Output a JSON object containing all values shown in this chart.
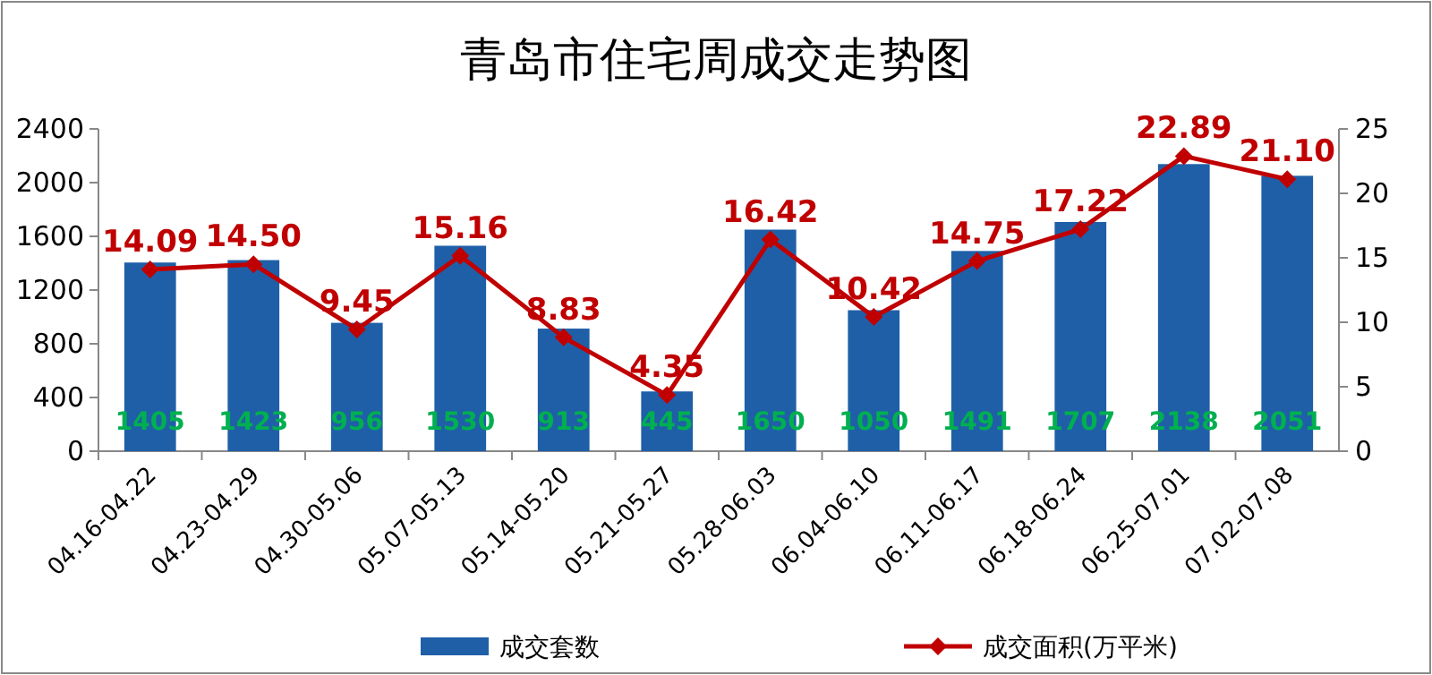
{
  "chart_data": {
    "type": "bar",
    "title": "青岛市住宅周成交走势图",
    "categories": [
      "04.16-04.22",
      "04.23-04.29",
      "04.30-05.06",
      "05.07-05.13",
      "05.14-05.20",
      "05.21-05.27",
      "05.28-06.03",
      "06.04-06.10",
      "06.11-06.17",
      "06.18-06.24",
      "06.25-07.01",
      "07.02-07.08"
    ],
    "series": [
      {
        "name": "成交套数",
        "color": "#1f5fa8",
        "values": [
          1405,
          1423,
          956,
          1530,
          913,
          445,
          1650,
          1050,
          1491,
          1707,
          2138,
          2051
        ]
      },
      {
        "name": "成交面积(万平米)",
        "type": "line",
        "axis": "y2",
        "color": "#c00000",
        "marker": "diamond",
        "values": [
          14.09,
          14.5,
          9.45,
          15.16,
          8.83,
          4.35,
          16.42,
          10.42,
          14.75,
          17.22,
          22.89,
          21.1
        ],
        "value_labels": [
          "14.09",
          "14.50",
          "9.45",
          "15.16",
          "8.83",
          "4.35",
          "16.42",
          "10.42",
          "14.75",
          "17.22",
          "22.89",
          "21.10"
        ]
      }
    ],
    "ylim": [
      0,
      2400
    ],
    "yticks": [
      0,
      400,
      800,
      1200,
      1600,
      2000,
      2400
    ],
    "y2lim": [
      0,
      25
    ],
    "y2ticks": [
      0,
      5,
      10,
      15,
      20,
      25
    ],
    "data_labels": true,
    "legend": "bottom",
    "grid": false
  }
}
